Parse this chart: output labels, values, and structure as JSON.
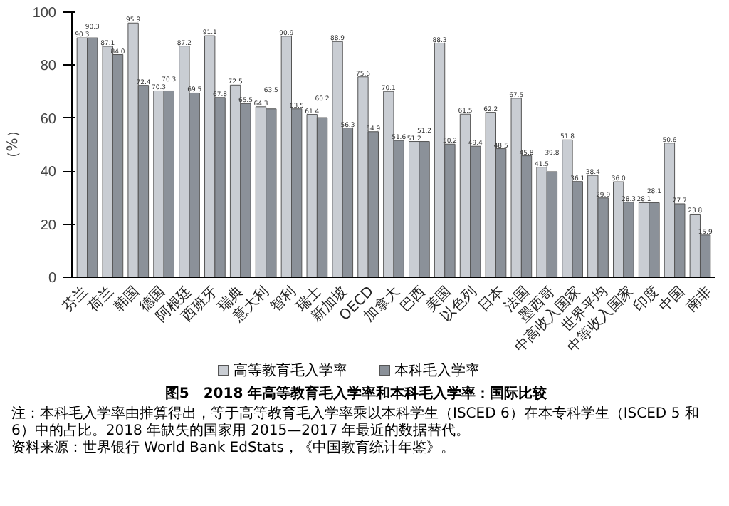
{
  "chart_data": {
    "type": "bar",
    "title": "图5　2018 年高等教育毛入学率和本科毛入学率：国际比较",
    "ylabel": "（%）",
    "categories": [
      "芬兰",
      "荷兰",
      "韩国",
      "德国",
      "阿根廷",
      "西班牙",
      "瑞典",
      "意大利",
      "智利",
      "瑞士",
      "新加坡",
      "OECD",
      "加拿大",
      "巴西",
      "美国",
      "以色列",
      "日本",
      "法国",
      "墨西哥",
      "中高收入国家",
      "世界平均",
      "中等收入国家",
      "印度",
      "中国",
      "南非"
    ],
    "series": [
      {
        "name": "高等教育毛入学率",
        "color": "#c9cdd3",
        "values": [
          90.3,
          87.1,
          95.9,
          70.3,
          87.2,
          91.1,
          72.5,
          64.3,
          90.9,
          61.4,
          88.9,
          75.6,
          70.1,
          51.2,
          88.3,
          61.5,
          62.2,
          67.5,
          41.5,
          51.8,
          38.4,
          36.0,
          28.1,
          50.6,
          23.8
        ],
        "value_labels": [
          "90.3",
          "87.1",
          "95.9",
          "70.3",
          "87.2",
          "91.1",
          "72.5",
          "64.3",
          "90.9",
          "61.4",
          "88.9",
          "75.6",
          "70.1",
          "51.2",
          "88.3",
          "61.5",
          "62.2",
          "67.5",
          "41.5",
          "51.8",
          "38.4",
          "36.0",
          "28.1",
          "50.6",
          "23.8"
        ]
      },
      {
        "name": "本科毛入学率",
        "color": "#8b9199",
        "values": [
          90.3,
          84.0,
          72.4,
          70.3,
          69.5,
          67.8,
          65.5,
          63.5,
          63.5,
          60.2,
          56.3,
          54.9,
          51.6,
          51.2,
          50.2,
          49.4,
          48.5,
          45.8,
          39.8,
          36.1,
          29.9,
          28.3,
          28.1,
          27.7,
          15.9
        ],
        "value_labels": [
          "90.3",
          "84.0",
          "72.4",
          "70.3",
          "69.5",
          "67.8",
          "65.5",
          "63.5",
          "63.5",
          "60.2",
          "56.3",
          "54.9",
          "51.6",
          "51.2",
          "50.2",
          "49.4",
          "48.5",
          "45.8",
          "39.8",
          "36.1",
          "29.9",
          "28.3",
          "28.1",
          "27.7",
          "15.9"
        ]
      }
    ],
    "ylim": [
      0,
      100
    ],
    "yticks": [
      0,
      20,
      40,
      60,
      80,
      100
    ],
    "grid": false,
    "legend": "bottom",
    "annotations": [
      "注：本科毛入学率由推算得出，等于高等教育毛入学率乘以本科学生（ISCED 6）在本专科学生（ISCED 5 和6）中的占比。2018 年缺失的国家用 2015—2017 年最近的数据替代。",
      "资料来源：世界银行 World Bank EdStats，《中国教育统计年鉴》。"
    ]
  }
}
